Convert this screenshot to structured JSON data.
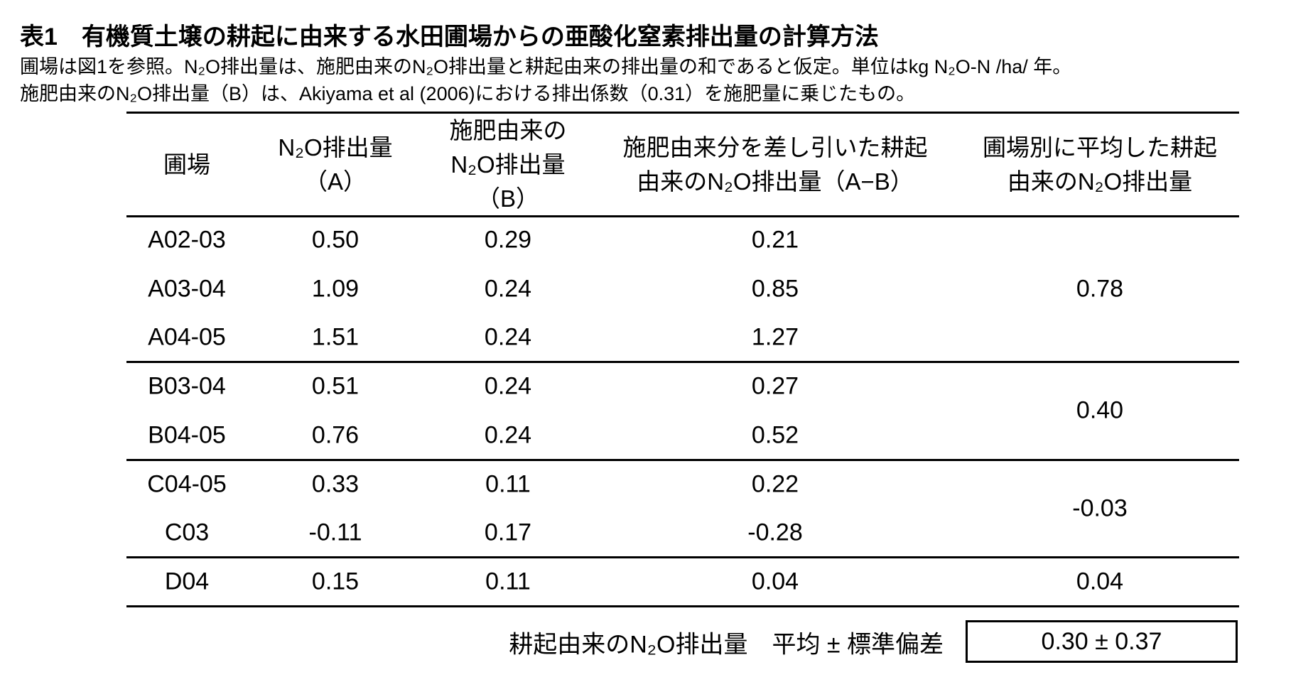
{
  "title": "表1　有機質土壌の耕起に由来する水田圃場からの亜酸化窒素排出量の計算方法",
  "notes": [
    "圃場は図1を参照。N₂O排出量は、施肥由来のN₂O排出量と耕起由来の排出量の和であると仮定。単位はkg N₂O-N /ha/ 年。",
    "施肥由来のN₂O排出量（B）は、Akiyama et al (2006)における排出係数（0.31）を施肥量に乗じたもの。"
  ],
  "table": {
    "headers": [
      [
        "圃場"
      ],
      [
        "N₂O排出量",
        "（A）"
      ],
      [
        "施肥由来の",
        "N₂O排出量",
        "（B）"
      ],
      [
        "施肥由来分を差し引いた耕起",
        "由来のN₂O排出量（A−B）"
      ],
      [
        "圃場別に平均した耕起",
        "由来のN₂O排出量"
      ]
    ],
    "groups": [
      {
        "rows": [
          [
            "A02-03",
            "0.50",
            "0.29",
            "0.21"
          ],
          [
            "A03-04",
            "1.09",
            "0.24",
            "0.85"
          ],
          [
            "A04-05",
            "1.51",
            "0.24",
            "1.27"
          ]
        ],
        "average": "0.78"
      },
      {
        "rows": [
          [
            "B03-04",
            "0.51",
            "0.24",
            "0.27"
          ],
          [
            "B04-05",
            "0.76",
            "0.24",
            "0.52"
          ]
        ],
        "average": "0.40"
      },
      {
        "rows": [
          [
            "C04-05",
            "0.33",
            "0.11",
            "0.22"
          ],
          [
            "C03",
            "-0.11",
            "0.17",
            "-0.28"
          ]
        ],
        "average": "-0.03"
      },
      {
        "rows": [
          [
            "D04",
            "0.15",
            "0.11",
            "0.04"
          ]
        ],
        "average": "0.04"
      }
    ]
  },
  "summary": {
    "label": "耕起由来のN₂O排出量　平均 ± 標準偏差",
    "value": "0.30 ± 0.37"
  }
}
